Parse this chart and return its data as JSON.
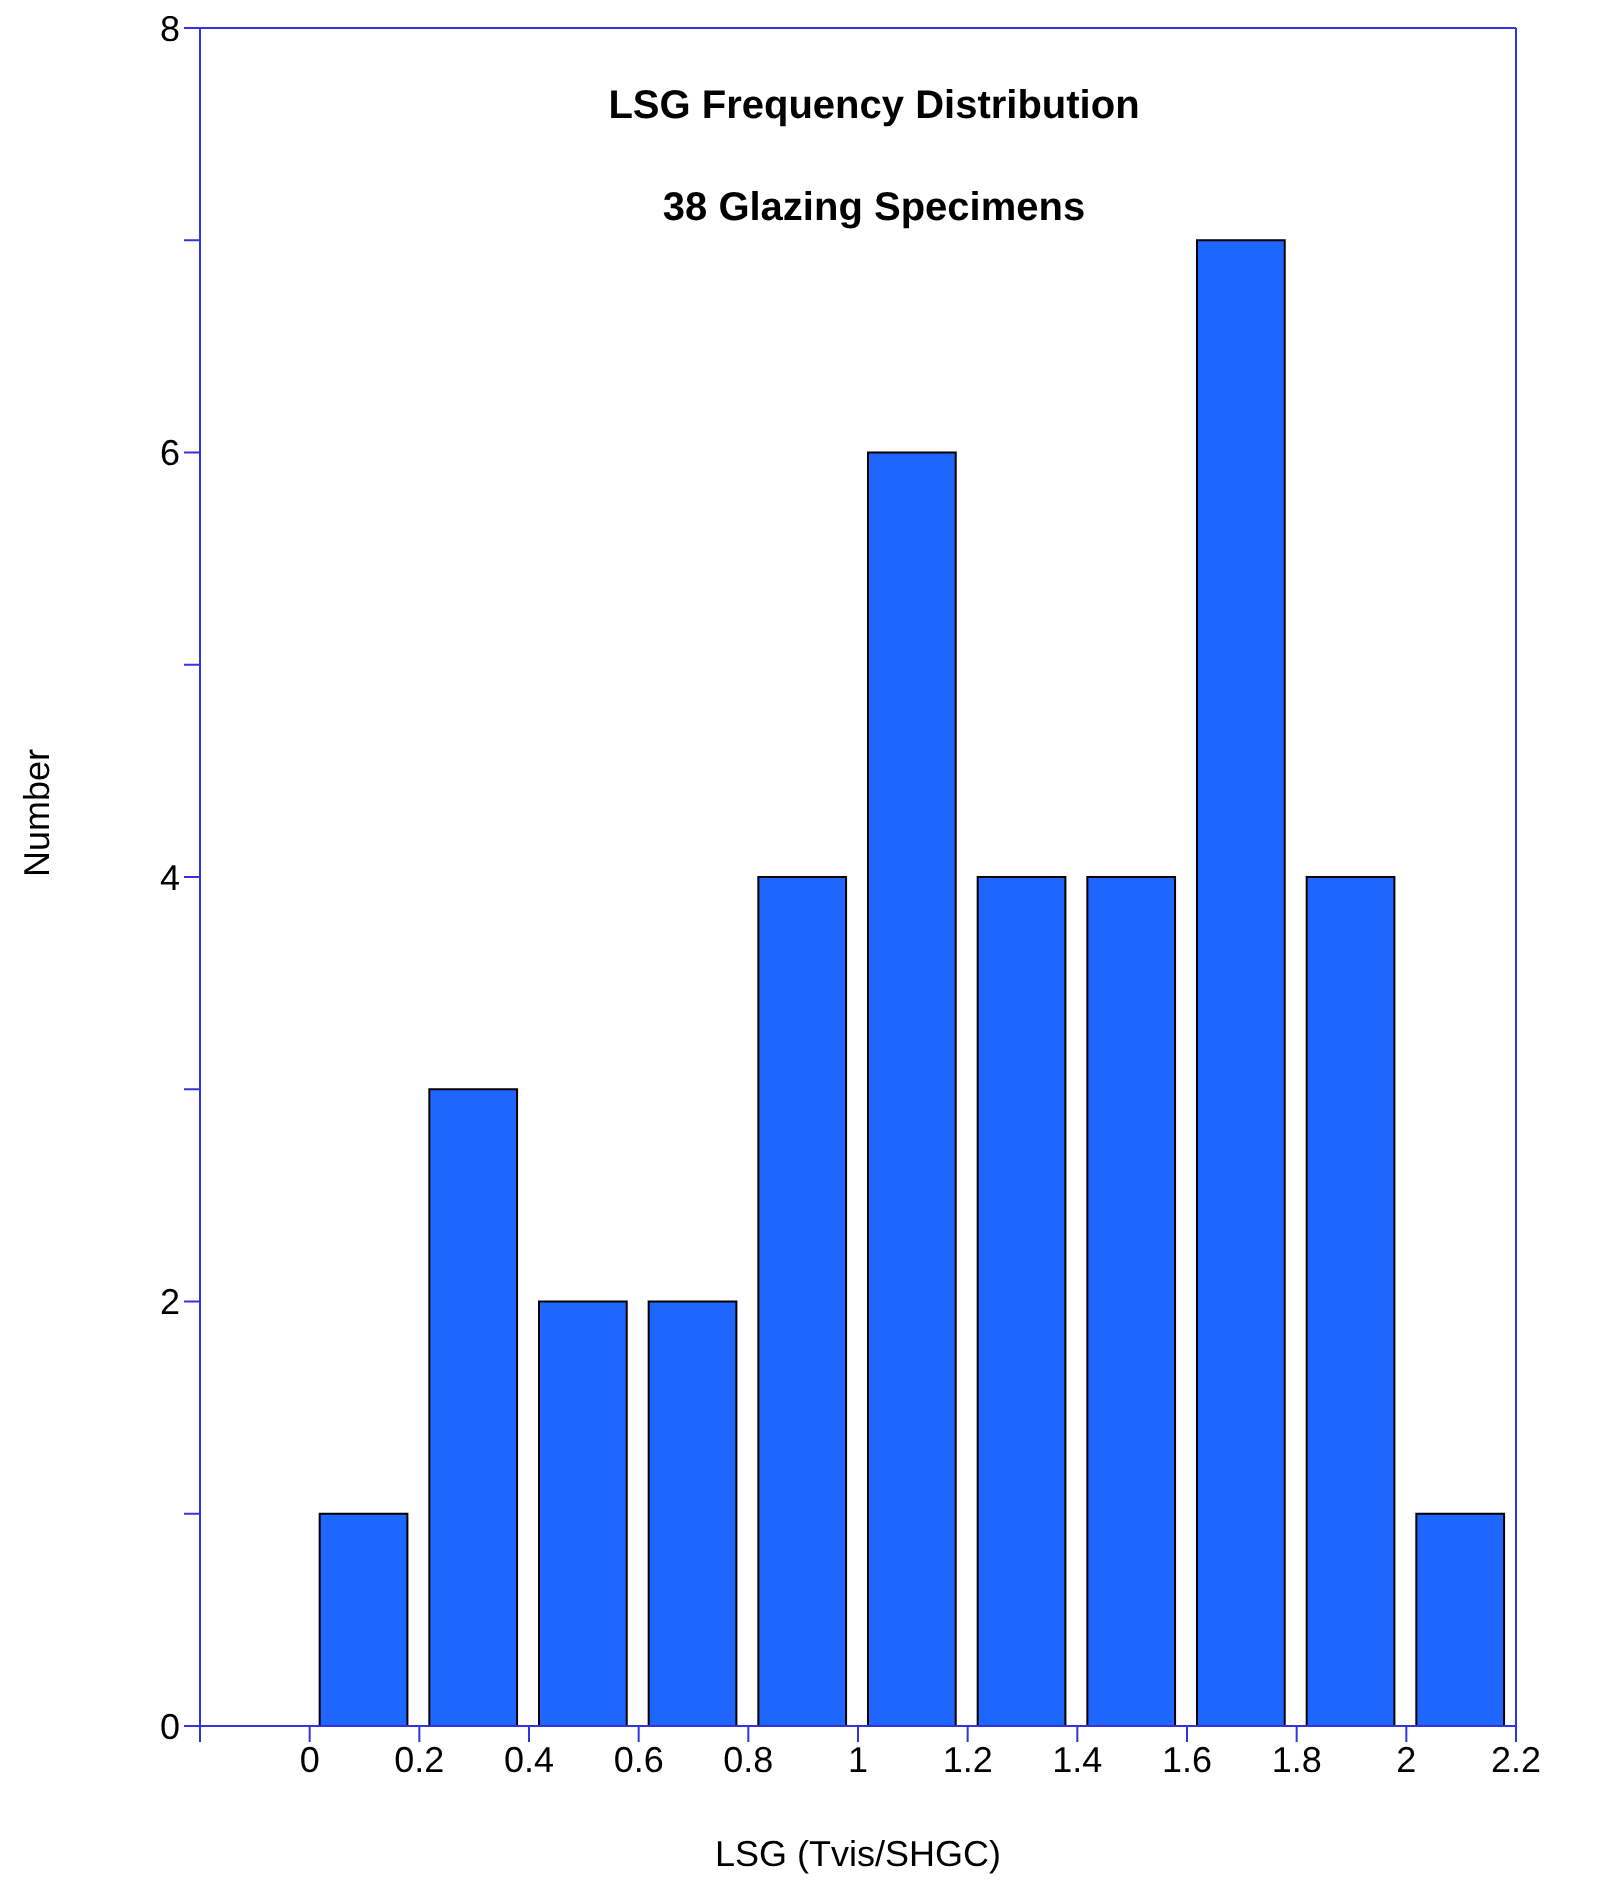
{
  "chart_data": {
    "type": "histogram",
    "title": "LSG Frequency Distribution",
    "subtitle": "38 Glazing Specimens",
    "xlabel": "LSG (Tvis/SHGC)",
    "ylabel": "Number",
    "bins": [
      0,
      0.2,
      0.4,
      0.6,
      0.8,
      1,
      1.2,
      1.4,
      1.6,
      1.8,
      2,
      2.2
    ],
    "values": [
      1,
      3,
      2,
      2,
      4,
      6,
      4,
      4,
      7,
      4,
      1
    ],
    "color": "#1f66ff",
    "xlim": [
      -0.2,
      2.2
    ],
    "xticks": [
      {
        "value": -0.2,
        "label": null
      },
      0,
      0.2,
      0.4,
      0.6,
      0.8,
      1,
      1.2,
      1.4,
      1.6,
      1.8,
      2,
      2.2
    ],
    "ylim": [
      0,
      8
    ],
    "yticks": [
      0,
      {
        "value": 1,
        "label": null
      },
      2,
      {
        "value": 3,
        "label": null
      },
      4,
      {
        "value": 5,
        "label": null
      },
      6,
      {
        "value": 7,
        "label": null
      },
      8
    ]
  }
}
